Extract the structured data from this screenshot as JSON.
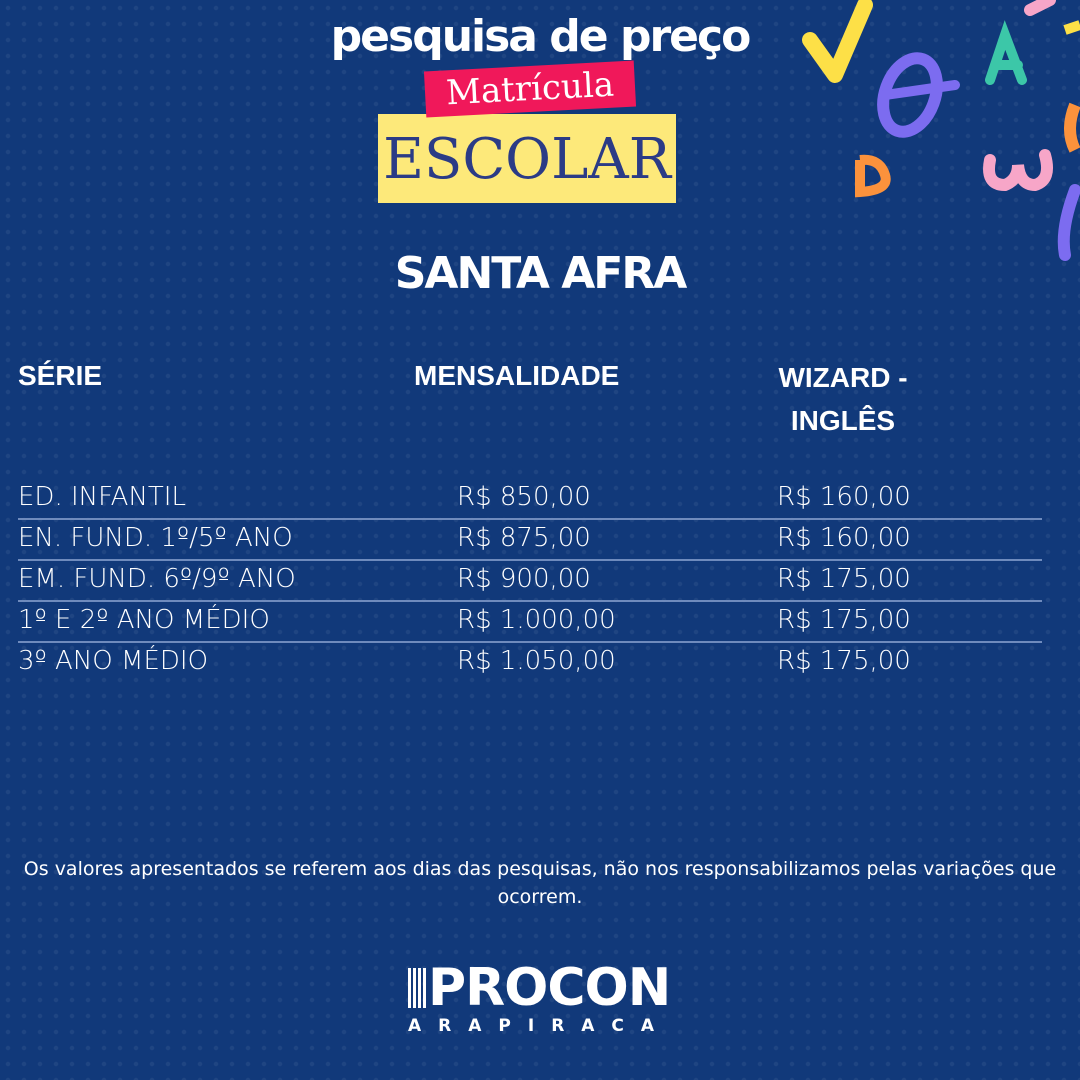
{
  "header": {
    "title": "pesquisa de preço",
    "tag": "Matrícula",
    "subtitle": "ESCOLAR"
  },
  "school": "SANTA AFRA",
  "table": {
    "columns": [
      "SÉRIE",
      "MENSALIDADE",
      "WIZARD - INGLÊS"
    ],
    "rows": [
      [
        "ED. INFANTIL",
        "R$ 850,00",
        "R$ 160,00"
      ],
      [
        "EN. FUND. 1º/5º ANO",
        "R$ 875,00",
        "R$ 160,00"
      ],
      [
        "EM. FUND. 6º/9º ANO",
        "R$ 900,00",
        "R$ 175,00"
      ],
      [
        "1º E 2º ANO MÉDIO",
        "R$ 1.000,00",
        "R$ 175,00"
      ],
      [
        "3º ANO MÉDIO",
        "R$ 1.050,00",
        "R$ 175,00"
      ]
    ]
  },
  "disclaimer": "Os valores apresentados se referem aos dias das pesquisas, não nos responsabilizamos pelas variações que ocorrem.",
  "logo": {
    "name": "PROCON",
    "city": "ARAPIRACA"
  },
  "colors": {
    "background": "#11397a",
    "pink": "#f0185a",
    "yellow": "#fde97a",
    "escolar_text": "#2b3b86"
  },
  "decor_icons": [
    "checkmark-letter",
    "theta-letter",
    "a-letter",
    "omega-letter",
    "d-letter"
  ]
}
